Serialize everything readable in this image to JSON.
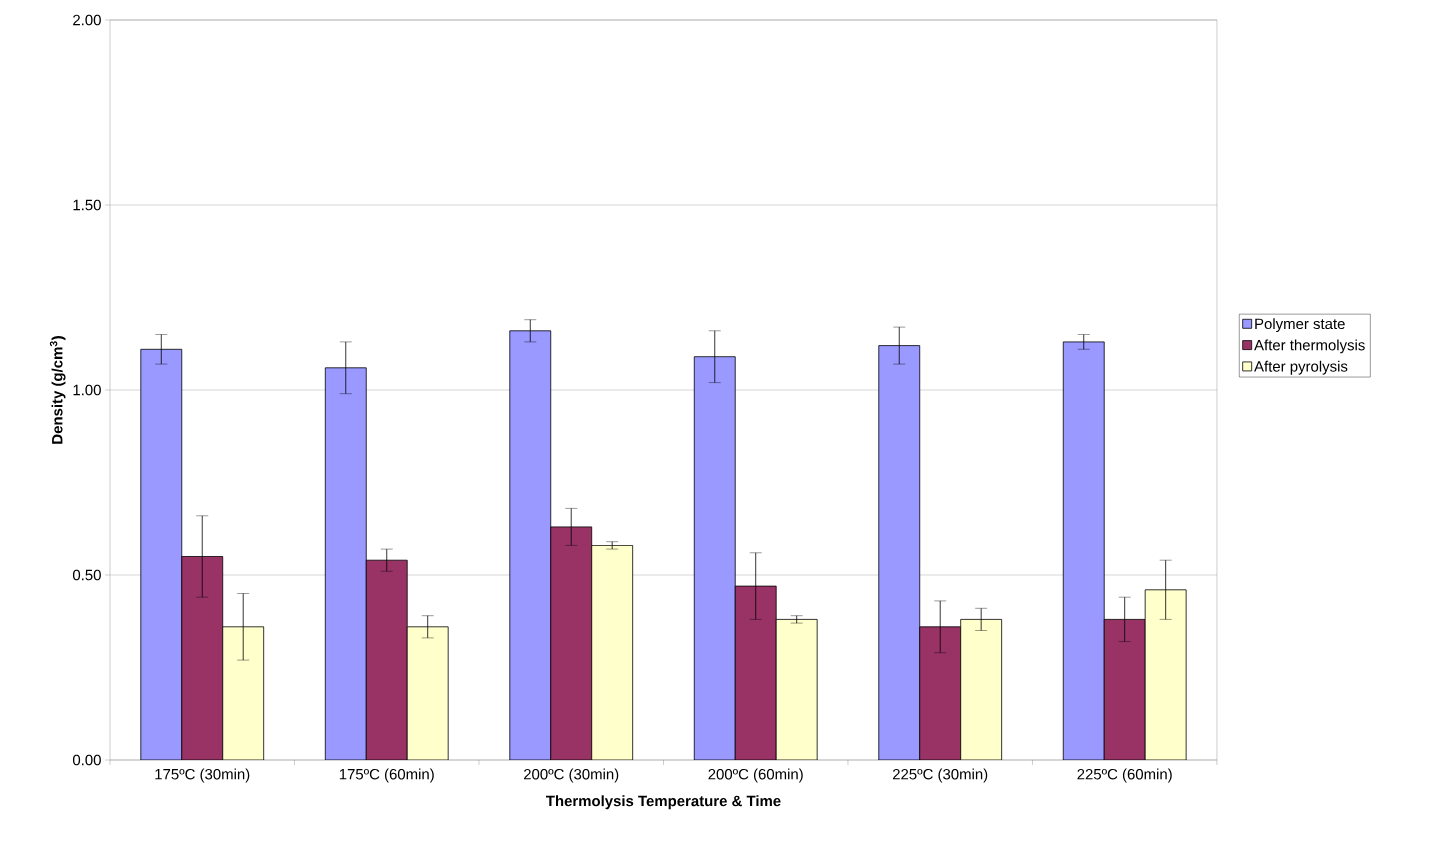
{
  "chart_data": {
    "type": "bar",
    "xlabel": "Thermolysis Temperature & Time",
    "ylabel": "Density (g/cm$^{3}$)",
    "categories": [
      "175ºC (30min)",
      "175ºC (60min)",
      "200ºC (30min)",
      "200ºC (60min)",
      "225ºC (30min)",
      "225ºC (60min)"
    ],
    "series": [
      {
        "name": "Polymer state",
        "color": "#9999ff",
        "values": [
          1.11,
          1.06,
          1.16,
          1.09,
          1.12,
          1.13
        ],
        "errors": [
          0.04,
          0.07,
          0.03,
          0.07,
          0.05,
          0.02
        ]
      },
      {
        "name": "After thermolysis",
        "color": "#993366",
        "values": [
          0.55,
          0.54,
          0.63,
          0.47,
          0.36,
          0.38
        ],
        "errors": [
          0.11,
          0.03,
          0.05,
          0.09,
          0.07,
          0.06
        ]
      },
      {
        "name": "After pyrolysis",
        "color": "#ffffcc",
        "values": [
          0.36,
          0.36,
          0.58,
          0.38,
          0.38,
          0.46
        ],
        "errors": [
          0.09,
          0.03,
          0.01,
          0.01,
          0.03,
          0.08
        ]
      }
    ],
    "ylim": [
      0,
      2
    ],
    "yticks": [
      {
        "value": 0,
        "label": "0.00"
      },
      {
        "value": 0.5,
        "label": "0.50"
      },
      {
        "value": 1,
        "label": "1.00"
      },
      {
        "value": 1.5,
        "label": "1.50"
      },
      {
        "value": 2,
        "label": "2.00"
      }
    ],
    "grid": "y",
    "legend": "right"
  }
}
